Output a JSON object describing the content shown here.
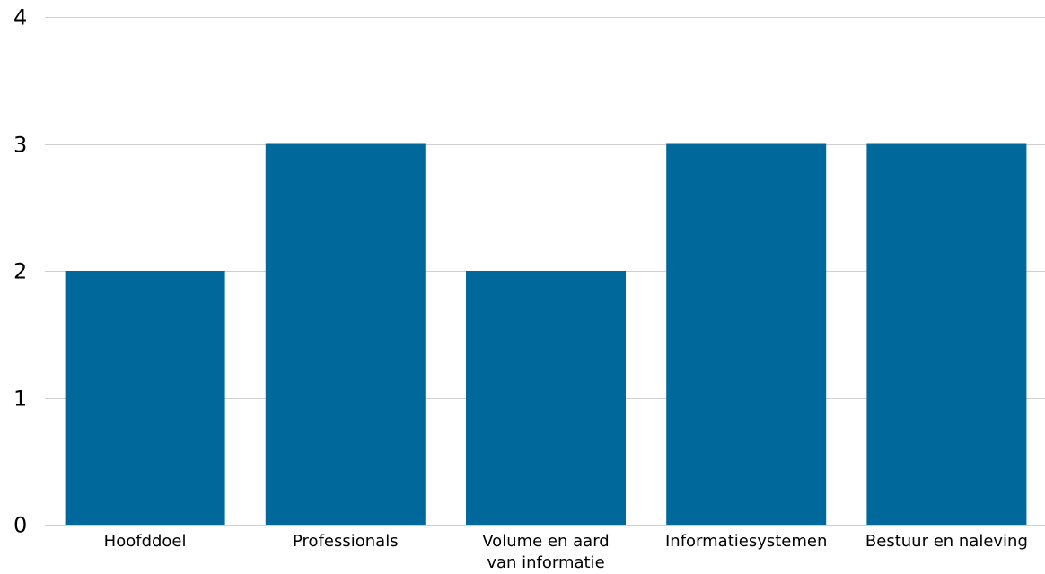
{
  "chart_data": {
    "type": "bar",
    "categories": [
      "Hoofddoel",
      "Professionals",
      "Volume en aard van informatie",
      "Informatiesystemen",
      "Bestuur en naleving"
    ],
    "category_lines": [
      [
        "Hoofddoel"
      ],
      [
        "Professionals"
      ],
      [
        "Volume en aard",
        "van informatie"
      ],
      [
        "Informatiesystemen"
      ],
      [
        "Bestuur en naleving"
      ]
    ],
    "values": [
      2,
      3,
      2,
      3,
      3
    ],
    "ylim": [
      0,
      4
    ],
    "yticks": [
      0,
      1,
      2,
      3,
      4
    ],
    "title": "",
    "xlabel": "",
    "ylabel": "",
    "grid": true,
    "bar_color": "#01689b",
    "grid_color": "#cfcfcf"
  }
}
